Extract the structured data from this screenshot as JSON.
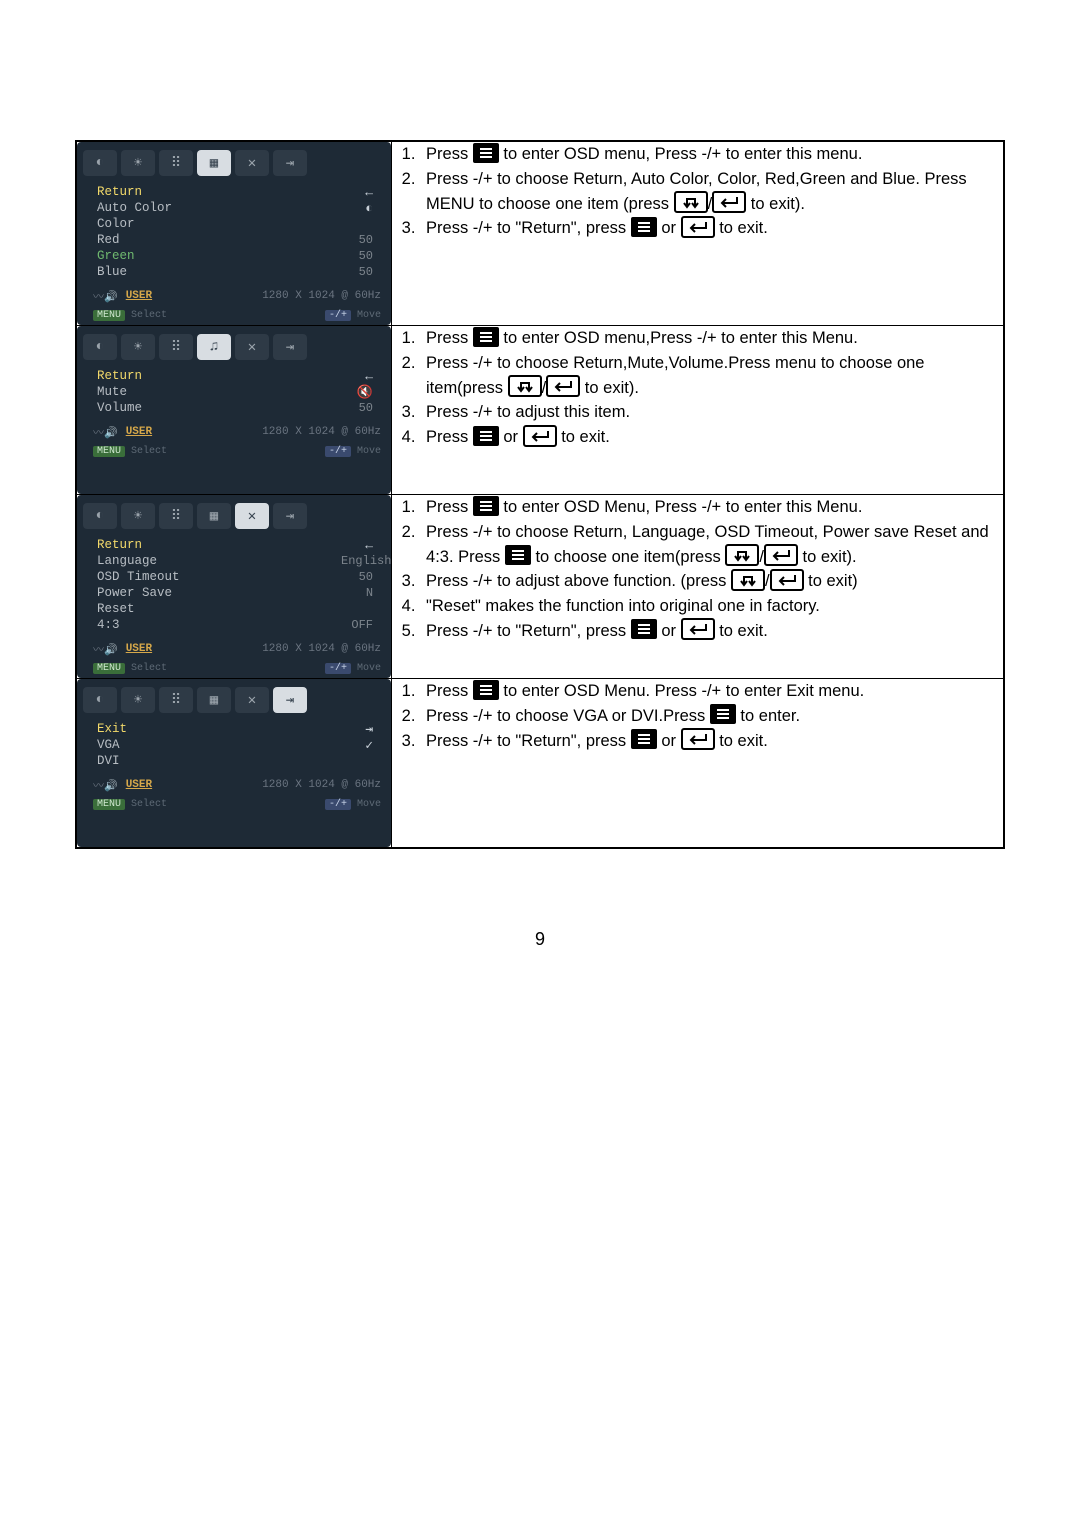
{
  "page_number": "9",
  "common_status": {
    "user": "USER",
    "resolution": "1280 X 1024 @ 60Hz",
    "select_label": "Select",
    "move_label": "Move"
  },
  "tabs": [
    "contrast",
    "brightness",
    "color",
    "geometry",
    "tools",
    "exit"
  ],
  "rows": [
    {
      "active_tab": 3,
      "items": [
        {
          "label": "Return",
          "hl": true,
          "icon": "←"
        },
        {
          "label": "Auto Color",
          "icon": "◐"
        },
        {
          "label": "Color",
          "val": ""
        },
        {
          "label": "Red",
          "val": "50"
        },
        {
          "label": "Green",
          "val": "50",
          "green": true
        },
        {
          "label": "Blue",
          "val": "50"
        }
      ],
      "instr": {
        "i1a": "Press ",
        "i1b": " to enter OSD menu, Press -/+ to enter this menu.",
        "i2": "Press -/+ to choose Return, Auto Color, Color, Red,Green and Blue. Press MENU to choose one item (press ",
        "i2b": " to exit).",
        "i3a": "Press -/+ to \"Return\", press ",
        "i3b": " or ",
        "i3c": " to exit."
      }
    },
    {
      "active_tab": 3,
      "alt_icon": true,
      "items": [
        {
          "label": "Return",
          "hl": true,
          "icon": "←"
        },
        {
          "label": "Mute",
          "icon": "🔇"
        },
        {
          "label": "Volume",
          "val": "50"
        }
      ],
      "instr": {
        "i1a": "Press ",
        "i1b": " to enter OSD menu,Press -/+ to enter this Menu.",
        "i2a": "Press -/+ to choose Return,Mute,Volume.Press menu to choose one item(press ",
        "i2b": " to exit).",
        "i3": "Press -/+ to adjust this item.",
        "i4a": "Press ",
        "i4b": " or ",
        "i4c": " to exit."
      }
    },
    {
      "active_tab": 4,
      "items": [
        {
          "label": "Return",
          "hl": true,
          "icon": "←"
        },
        {
          "label": "Language",
          "val": "English"
        },
        {
          "label": "OSD Timeout",
          "val": "50"
        },
        {
          "label": "Power Save",
          "val": "N"
        },
        {
          "label": "Reset",
          "val": ""
        },
        {
          "label": "4:3",
          "val": "OFF"
        }
      ],
      "instr": {
        "i1a": "Press ",
        "i1b": " to enter OSD Menu, Press -/+ to enter this Menu.",
        "i2a": "Press -/+ to choose Return, Language, OSD Timeout, Power save Reset and 4:3. Press ",
        "i2b": " to choose one item(press ",
        "i2c": " to exit).",
        "i3a": "Press -/+ to adjust above function. (press ",
        "i3b": " to exit)",
        "i4": "\"Reset\" makes the function into original one in factory.",
        "i5a": "Press -/+ to \"Return\", press ",
        "i5b": " or ",
        "i5c": " to exit."
      }
    },
    {
      "active_tab": 5,
      "items": [
        {
          "label": "Exit",
          "hl": true,
          "icon": "⇥"
        },
        {
          "label": "VGA",
          "icon": "✓"
        },
        {
          "label": "DVI"
        }
      ],
      "instr": {
        "i1a": "Press ",
        "i1b": " to enter OSD Menu. Press -/+ to enter Exit menu.",
        "i2a": "Press -/+ to choose VGA or DVI.Press ",
        "i2b": " to enter.",
        "i3a": "Press -/+ to \"Return\", press ",
        "i3b": " or ",
        "i3c": " to exit."
      }
    }
  ]
}
